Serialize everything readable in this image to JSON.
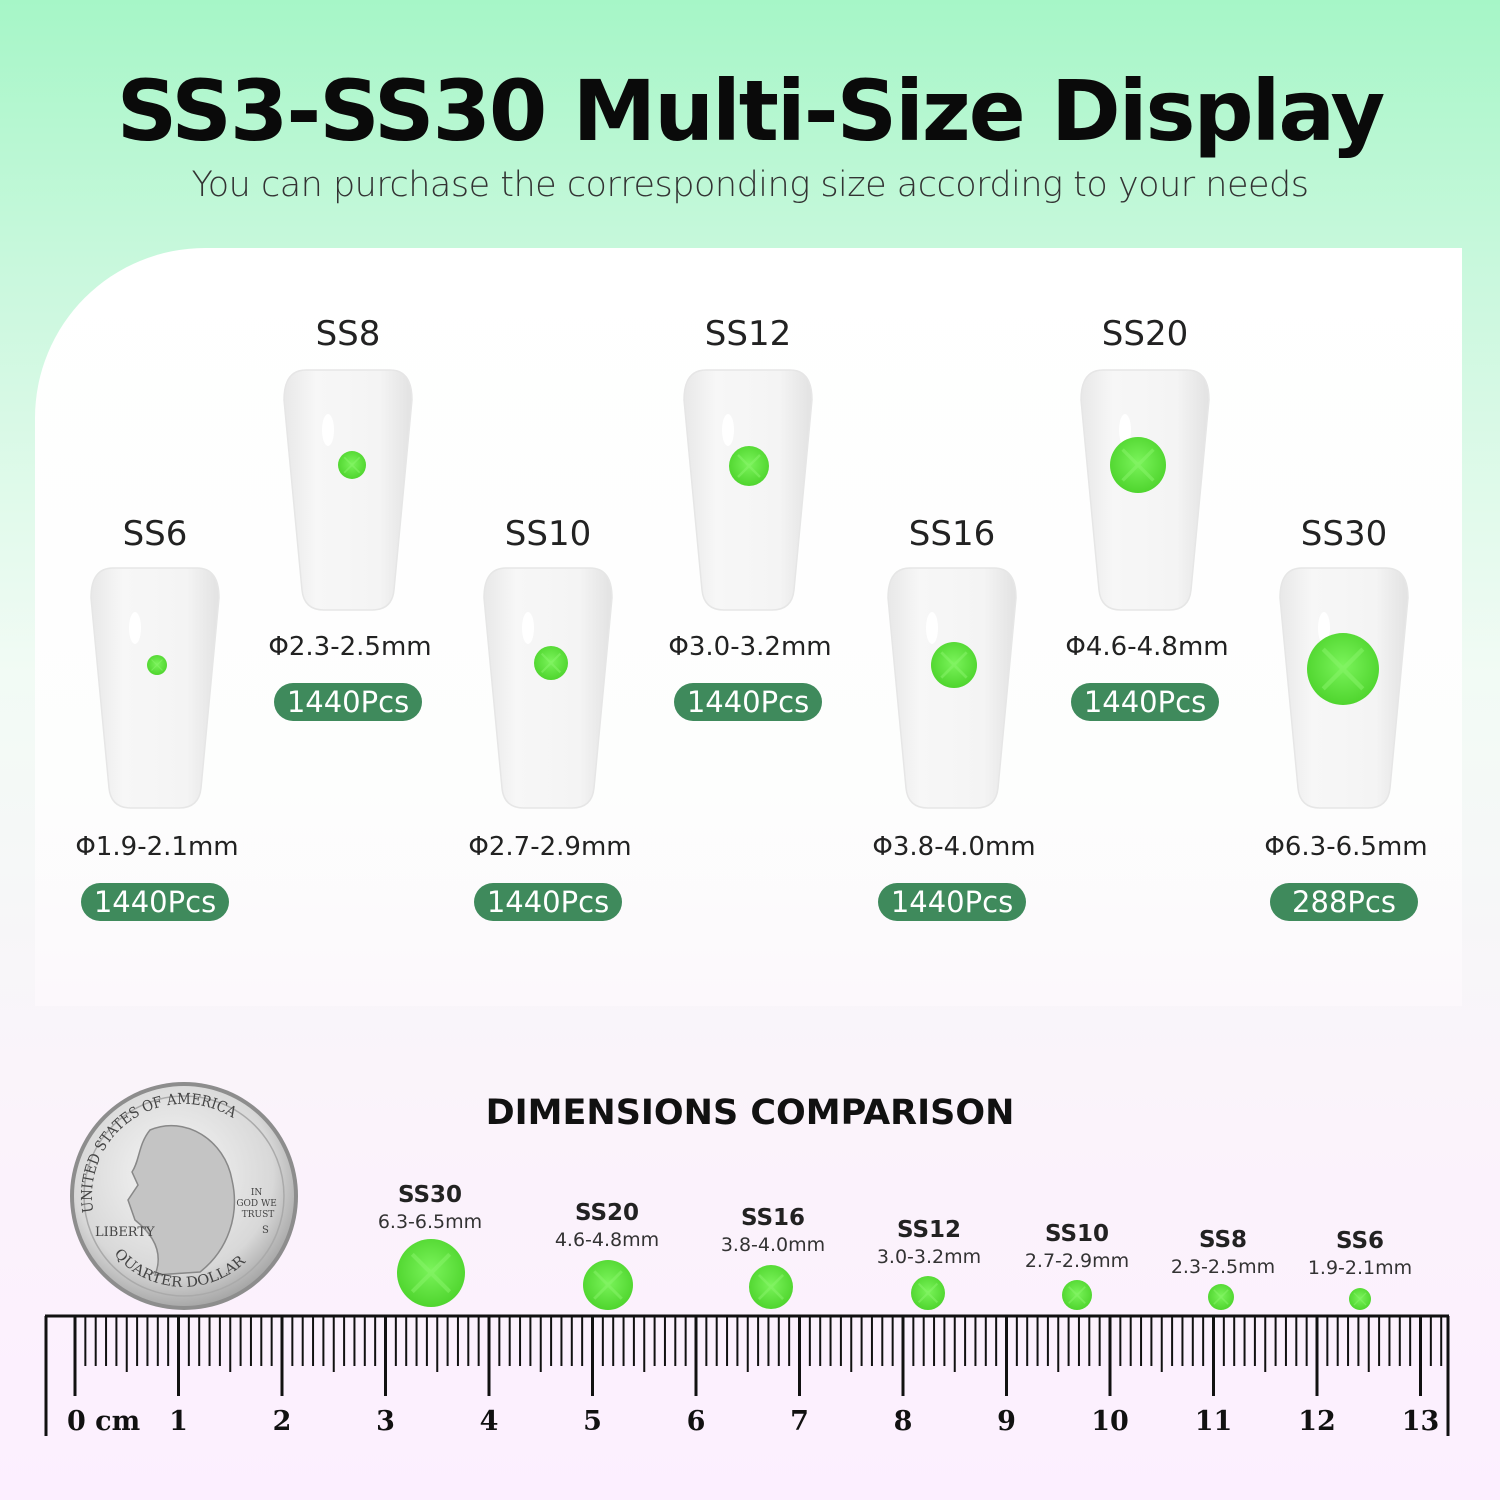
{
  "header": {
    "title": "SS3-SS30 Multi-Size Display",
    "subtitle": "You can purchase the corresponding size according to your needs"
  },
  "colors": {
    "rhinestone": "#5ee83c",
    "badge": "#3f8a5c"
  },
  "nails": [
    {
      "label": "SS6",
      "size": "Φ1.9-2.1mm",
      "count": "1440Pcs"
    },
    {
      "label": "SS8",
      "size": "Φ2.3-2.5mm",
      "count": "1440Pcs"
    },
    {
      "label": "SS10",
      "size": "Φ2.7-2.9mm",
      "count": "1440Pcs"
    },
    {
      "label": "SS12",
      "size": "Φ3.0-3.2mm",
      "count": "1440Pcs"
    },
    {
      "label": "SS16",
      "size": "Φ3.8-4.0mm",
      "count": "1440Pcs"
    },
    {
      "label": "SS20",
      "size": "Φ4.6-4.8mm",
      "count": "1440Pcs"
    },
    {
      "label": "SS30",
      "size": "Φ6.3-6.5mm",
      "count": "288Pcs"
    }
  ],
  "comparison": {
    "title": "DIMENSIONS COMPARISON",
    "items": [
      {
        "label": "SS30",
        "size": "6.3-6.5mm"
      },
      {
        "label": "SS20",
        "size": "4.6-4.8mm"
      },
      {
        "label": "SS16",
        "size": "3.8-4.0mm"
      },
      {
        "label": "SS12",
        "size": "3.0-3.2mm"
      },
      {
        "label": "SS10",
        "size": "2.7-2.9mm"
      },
      {
        "label": "SS8",
        "size": "2.3-2.5mm"
      },
      {
        "label": "SS6",
        "size": "1.9-2.1mm"
      }
    ]
  },
  "coin": {
    "top": "UNITED STATES OF AMERICA",
    "bottom": "QUARTER DOLLAR",
    "left": "LIBERTY",
    "motto": "IN GOD WE TRUST",
    "mint": "S"
  },
  "ruler": {
    "unit": "cm",
    "labels": [
      "0 cm",
      "1",
      "2",
      "3",
      "4",
      "5",
      "6",
      "7",
      "8",
      "9",
      "10",
      "11",
      "12",
      "13"
    ]
  }
}
